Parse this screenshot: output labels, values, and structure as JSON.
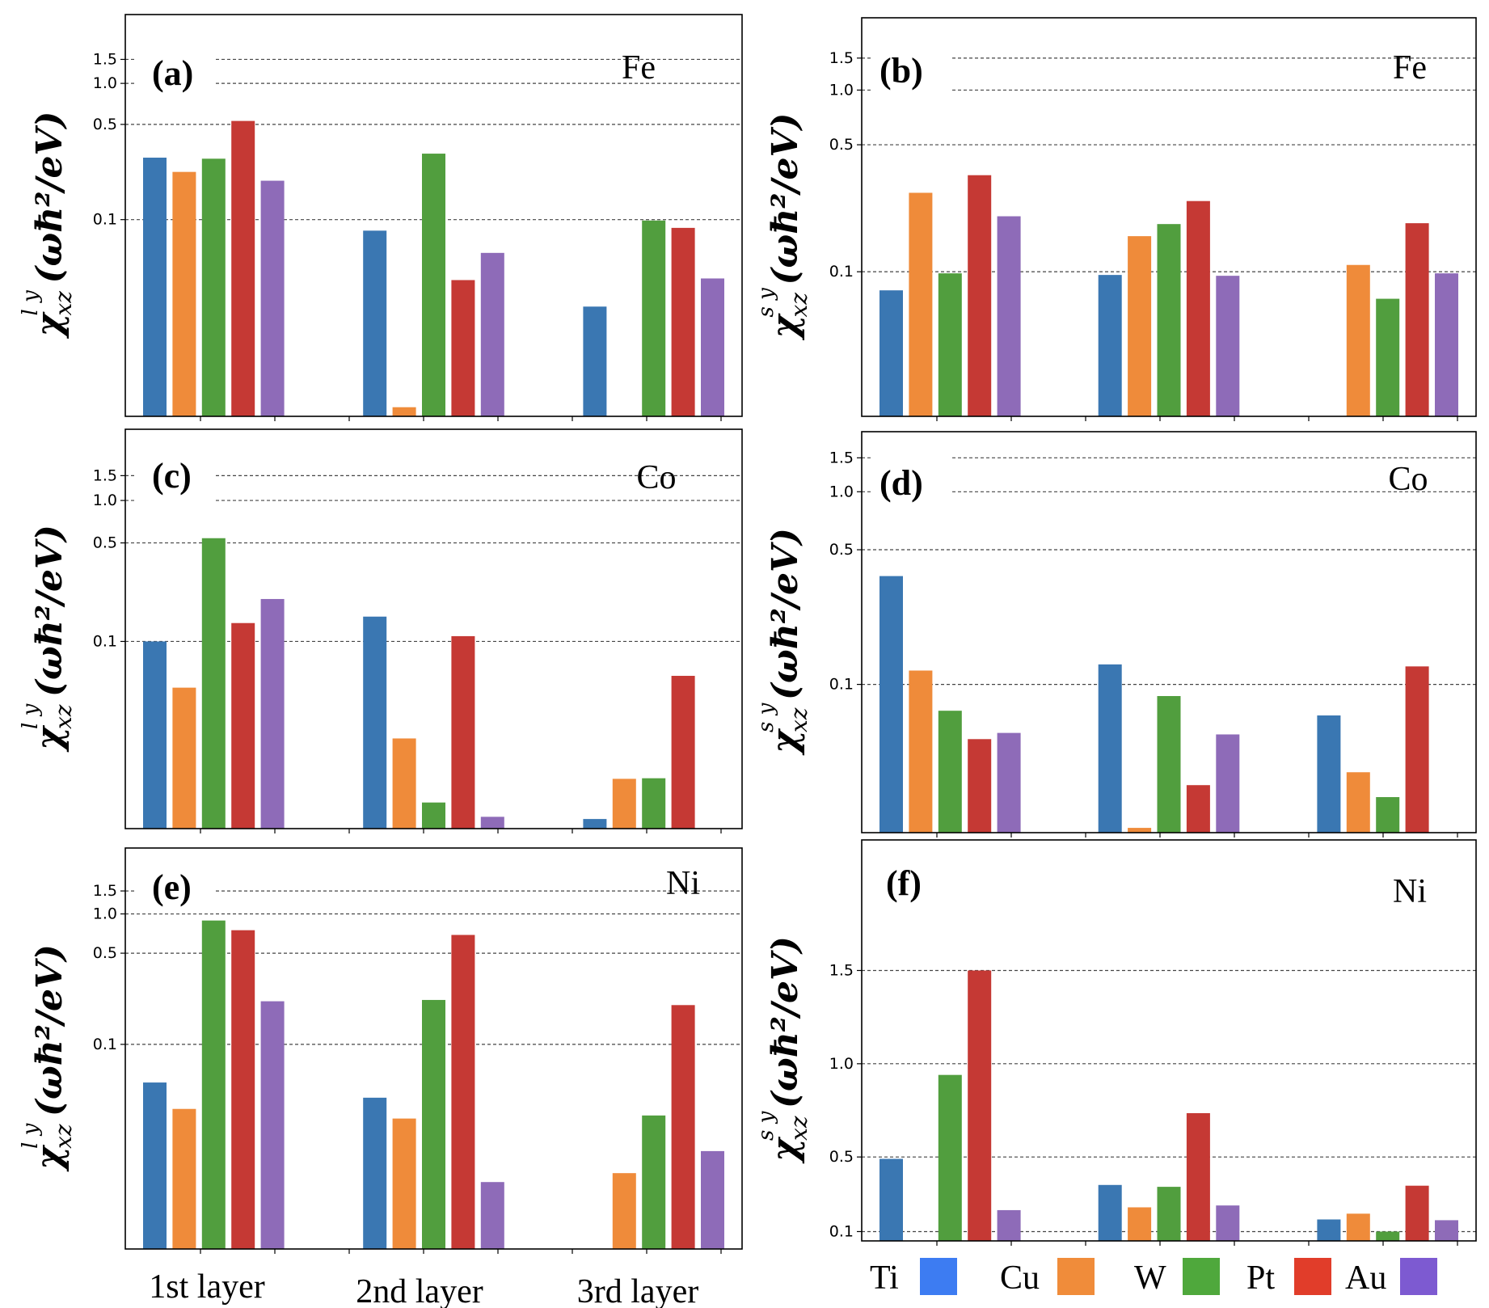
{
  "colors": {
    "Ti": "#3a77b2",
    "Cu": "#ef8b3a",
    "W": "#519e3e",
    "Pt": "#c53934",
    "Au": "#8e6bb8",
    "legend_Ti": "#3d7cf2",
    "legend_Cu": "#f08c3a",
    "legend_W": "#4fa83c",
    "legend_Pt": "#e13d2a",
    "legend_Au": "#7d5ad1"
  },
  "x_categories": [
    "1st layer",
    "2nd layer",
    "3rd layer"
  ],
  "legend": [
    "Ti",
    "Cu",
    "W",
    "Pt",
    "Au"
  ],
  "ylabel_left": {
    "main": "χ",
    "sup": "l y",
    "sub": "xz",
    "tail": "(ωħ²/eV)"
  },
  "ylabel_right": {
    "main": "χ",
    "sup": "s y",
    "sub": "xz",
    "tail": "(ωħ²/eV)"
  },
  "chart_data": [
    {
      "panel": "(a)",
      "metal": "Fe",
      "type": "bar",
      "yscale": "log",
      "ylim": [
        0.0036,
        3.2
      ],
      "yticks": [
        0.1,
        0.5,
        1.0,
        1.5
      ],
      "ytick_labels": [
        "0.1",
        "0.5",
        "1.0",
        "1.5"
      ],
      "categories": [
        "1st layer",
        "2nd layer",
        "3rd layer"
      ],
      "series": [
        {
          "name": "Ti",
          "values": [
            0.285,
            0.083,
            0.023
          ]
        },
        {
          "name": "Cu",
          "values": [
            0.224,
            0.0042,
            null
          ]
        },
        {
          "name": "W",
          "values": [
            0.28,
            0.305,
            0.0985
          ]
        },
        {
          "name": "Pt",
          "values": [
            0.53,
            0.036,
            0.087
          ]
        },
        {
          "name": "Au",
          "values": [
            0.193,
            0.057,
            0.037
          ]
        }
      ]
    },
    {
      "panel": "(b)",
      "metal": "Fe",
      "type": "bar",
      "yscale": "log",
      "ylim": [
        0.016,
        2.5
      ],
      "yticks": [
        0.1,
        0.5,
        1.0,
        1.5
      ],
      "ytick_labels": [
        "0.1",
        "0.5",
        "1.0",
        "1.5"
      ],
      "categories": [
        "1st layer",
        "2nd layer",
        "3rd layer"
      ],
      "series": [
        {
          "name": "Ti",
          "values": [
            0.079,
            0.096,
            null
          ]
        },
        {
          "name": "Cu",
          "values": [
            0.272,
            0.157,
            0.109
          ]
        },
        {
          "name": "W",
          "values": [
            0.098,
            0.183,
            0.071
          ]
        },
        {
          "name": "Pt",
          "values": [
            0.34,
            0.245,
            0.185
          ]
        },
        {
          "name": "Au",
          "values": [
            0.202,
            0.095,
            0.098
          ]
        }
      ]
    },
    {
      "panel": "(c)",
      "metal": "Co",
      "type": "bar",
      "yscale": "log",
      "ylim": [
        0.0047,
        3.2
      ],
      "yticks": [
        0.1,
        0.5,
        1.0,
        1.5
      ],
      "ytick_labels": [
        "0.1",
        "0.5",
        "1.0",
        "1.5"
      ],
      "categories": [
        "1st layer",
        "2nd layer",
        "3rd layer"
      ],
      "series": [
        {
          "name": "Ti",
          "values": [
            0.1,
            0.15,
            0.0055
          ]
        },
        {
          "name": "Cu",
          "values": [
            0.047,
            0.0205,
            0.0106
          ]
        },
        {
          "name": "W",
          "values": [
            0.54,
            0.0072,
            0.0107
          ]
        },
        {
          "name": "Pt",
          "values": [
            0.135,
            0.109,
            0.057
          ]
        },
        {
          "name": "Au",
          "values": [
            0.2,
            0.0057,
            null
          ]
        }
      ]
    },
    {
      "panel": "(d)",
      "metal": "Co",
      "type": "bar",
      "yscale": "log",
      "ylim": [
        0.017,
        2.05
      ],
      "yticks": [
        0.1,
        0.5,
        1.0,
        1.5
      ],
      "ytick_labels": [
        "0.1",
        "0.5",
        "1.0",
        "1.5"
      ],
      "categories": [
        "1st layer",
        "2nd layer",
        "3rd layer"
      ],
      "series": [
        {
          "name": "Ti",
          "values": [
            0.365,
            0.127,
            0.069
          ]
        },
        {
          "name": "Cu",
          "values": [
            0.118,
            0.018,
            0.035
          ]
        },
        {
          "name": "W",
          "values": [
            0.073,
            0.087,
            0.026
          ]
        },
        {
          "name": "Pt",
          "values": [
            0.052,
            0.03,
            0.124
          ]
        },
        {
          "name": "Au",
          "values": [
            0.056,
            0.055,
            null
          ]
        }
      ]
    },
    {
      "panel": "(e)",
      "metal": "Ni",
      "type": "bar",
      "yscale": "log",
      "ylim": [
        0.0027,
        3.2
      ],
      "yticks": [
        0.1,
        0.5,
        1.0,
        1.5
      ],
      "ytick_labels": [
        "0.1",
        "0.5",
        "1.0",
        "1.5"
      ],
      "categories": [
        "1st layer",
        "2nd layer",
        "3rd layer"
      ],
      "series": [
        {
          "name": "Ti",
          "values": [
            0.051,
            0.039,
            null
          ]
        },
        {
          "name": "Cu",
          "values": [
            0.032,
            0.027,
            0.0103
          ]
        },
        {
          "name": "W",
          "values": [
            0.89,
            0.219,
            0.0285
          ]
        },
        {
          "name": "Pt",
          "values": [
            0.75,
            0.69,
            0.2
          ]
        },
        {
          "name": "Au",
          "values": [
            0.214,
            0.0088,
            0.0152
          ]
        }
      ]
    },
    {
      "panel": "(f)",
      "metal": "Ni",
      "type": "bar",
      "yscale": "linear",
      "ylim": [
        0.05,
        2.2
      ],
      "yticks": [
        0.1,
        0.5,
        1.0,
        1.5
      ],
      "ytick_labels": [
        "0.1",
        "0.5",
        "1.0",
        "1.5"
      ],
      "categories": [
        "1st layer",
        "2nd layer",
        "3rd layer"
      ],
      "series": [
        {
          "name": "Ti",
          "values": [
            0.49,
            0.35,
            0.165
          ]
        },
        {
          "name": "Cu",
          "values": [
            null,
            0.23,
            0.196
          ]
        },
        {
          "name": "W",
          "values": [
            0.94,
            0.34,
            0.1
          ]
        },
        {
          "name": "Pt",
          "values": [
            1.5,
            0.735,
            0.346
          ]
        },
        {
          "name": "Au",
          "values": [
            0.215,
            0.24,
            0.161
          ]
        }
      ]
    }
  ]
}
